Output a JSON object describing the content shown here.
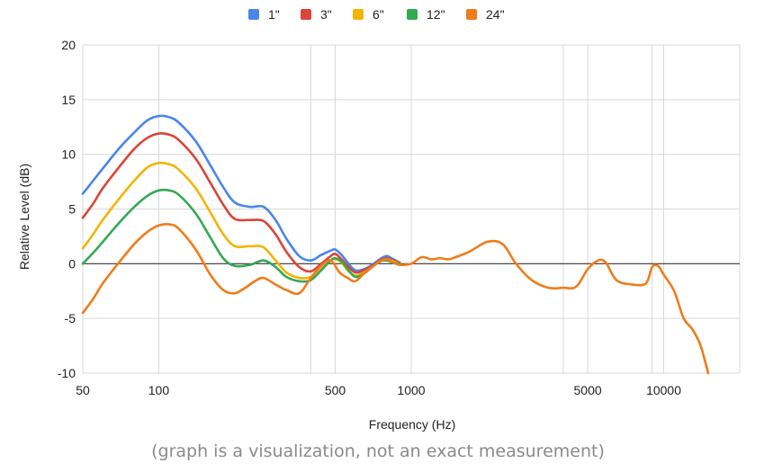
{
  "chart_data": {
    "type": "line",
    "title": "",
    "xlabel": "Frequency (Hz)",
    "ylabel": "Relative Level (dB)",
    "xscale": "log",
    "xlim": [
      50,
      20000
    ],
    "ylim": [
      -10,
      20
    ],
    "xticks": [
      50,
      100,
      500,
      1000,
      5000,
      10000
    ],
    "xtick_labels": [
      "50",
      "100",
      "500",
      "1000",
      "5000",
      "10000"
    ],
    "yticks": [
      -10,
      -5,
      0,
      5,
      10,
      15,
      20
    ],
    "ytick_labels": [
      "-10",
      "-5",
      "0",
      "5",
      "10",
      "15",
      "20"
    ],
    "xgrid": [
      50,
      100,
      400,
      500,
      1000,
      4000,
      5000,
      9000,
      10000,
      20000
    ],
    "grid": true,
    "legend_position": "top",
    "caption": "(graph is a visualization, not an exact measurement)",
    "series": [
      {
        "name": "1\"",
        "color": "#4a86e8",
        "x": [
          50,
          55,
          60,
          70,
          80,
          90,
          100,
          110,
          120,
          140,
          160,
          180,
          200,
          230,
          260,
          290,
          320,
          360,
          400,
          440,
          480,
          500,
          530,
          560,
          600,
          650,
          700,
          750,
          800,
          850,
          900
        ],
        "y": [
          6.4,
          7.6,
          8.7,
          10.6,
          12.0,
          13.1,
          13.5,
          13.4,
          12.9,
          11.2,
          9.0,
          7.0,
          5.6,
          5.2,
          5.2,
          4.0,
          2.3,
          0.7,
          0.3,
          0.8,
          1.2,
          1.3,
          0.8,
          0.1,
          -0.6,
          -0.5,
          -0.1,
          0.4,
          0.7,
          0.4,
          0.1
        ]
      },
      {
        "name": "3\"",
        "color": "#db4437",
        "x": [
          50,
          55,
          60,
          70,
          80,
          90,
          100,
          110,
          120,
          140,
          160,
          180,
          200,
          230,
          260,
          290,
          320,
          360,
          400,
          440,
          480,
          500,
          530,
          560,
          600,
          650,
          700,
          750,
          800,
          850,
          900
        ],
        "y": [
          4.2,
          5.5,
          6.9,
          8.9,
          10.5,
          11.5,
          11.9,
          11.8,
          11.3,
          9.6,
          7.4,
          5.4,
          4.1,
          4.0,
          3.9,
          2.7,
          1.1,
          -0.3,
          -0.7,
          0.0,
          0.7,
          0.9,
          0.4,
          -0.2,
          -0.8,
          -0.6,
          -0.2,
          0.3,
          0.5,
          0.3,
          0.1
        ]
      },
      {
        "name": "6\"",
        "color": "#f4b400",
        "x": [
          50,
          55,
          60,
          70,
          80,
          90,
          100,
          110,
          120,
          140,
          160,
          180,
          200,
          230,
          260,
          290,
          320,
          360,
          400,
          440,
          480,
          500,
          530,
          560,
          600,
          650,
          700,
          750,
          800,
          850,
          900
        ],
        "y": [
          1.4,
          2.7,
          4.0,
          6.0,
          7.6,
          8.8,
          9.2,
          9.1,
          8.6,
          6.9,
          4.7,
          2.7,
          1.6,
          1.6,
          1.5,
          0.3,
          -0.8,
          -1.3,
          -1.2,
          -0.5,
          0.3,
          0.4,
          0.1,
          -0.6,
          -1.1,
          -0.8,
          -0.3,
          0.2,
          0.4,
          0.2,
          0.0
        ]
      },
      {
        "name": "12\"",
        "color": "#34a853",
        "x": [
          50,
          55,
          60,
          70,
          80,
          90,
          100,
          110,
          120,
          140,
          160,
          180,
          200,
          230,
          260,
          290,
          320,
          360,
          400,
          440,
          480,
          500,
          530,
          560,
          600,
          650,
          700,
          750,
          800,
          850,
          900
        ],
        "y": [
          0.0,
          1.0,
          2.0,
          3.8,
          5.2,
          6.2,
          6.7,
          6.7,
          6.3,
          4.6,
          2.4,
          0.5,
          -0.2,
          -0.1,
          0.3,
          -0.3,
          -1.2,
          -1.6,
          -1.5,
          -0.6,
          0.3,
          0.5,
          0.2,
          -0.5,
          -1.2,
          -0.9,
          -0.3,
          0.2,
          0.3,
          0.1,
          0.0
        ]
      },
      {
        "name": "24\"",
        "color": "#ef7c1a",
        "x": [
          50,
          55,
          60,
          70,
          80,
          90,
          100,
          110,
          120,
          140,
          160,
          180,
          200,
          220,
          240,
          260,
          290,
          320,
          360,
          400,
          440,
          480,
          520,
          560,
          600,
          650,
          700,
          750,
          800,
          850,
          900,
          1000,
          1100,
          1200,
          1300,
          1400,
          1500,
          1700,
          2000,
          2300,
          2600,
          3000,
          3500,
          4000,
          4500,
          5000,
          5500,
          5900,
          6500,
          7500,
          8500,
          9000,
          9500,
          10000,
          11000,
          12000,
          13000,
          14000,
          15000
        ],
        "y": [
          -4.5,
          -3.2,
          -1.8,
          0.2,
          1.8,
          2.9,
          3.5,
          3.6,
          3.2,
          1.3,
          -1.0,
          -2.4,
          -2.7,
          -2.2,
          -1.6,
          -1.3,
          -1.9,
          -2.4,
          -2.7,
          -1.3,
          -0.2,
          0.3,
          -0.8,
          -1.3,
          -1.6,
          -0.9,
          -0.3,
          0.2,
          0.4,
          0.1,
          -0.1,
          0.0,
          0.6,
          0.4,
          0.5,
          0.4,
          0.6,
          1.1,
          2.0,
          1.8,
          0.0,
          -1.5,
          -2.2,
          -2.2,
          -2.1,
          -0.5,
          0.3,
          0.1,
          -1.5,
          -1.9,
          -1.8,
          -0.3,
          -0.2,
          -1.0,
          -2.5,
          -5.0,
          -6.0,
          -7.5,
          -10.0
        ]
      }
    ]
  }
}
